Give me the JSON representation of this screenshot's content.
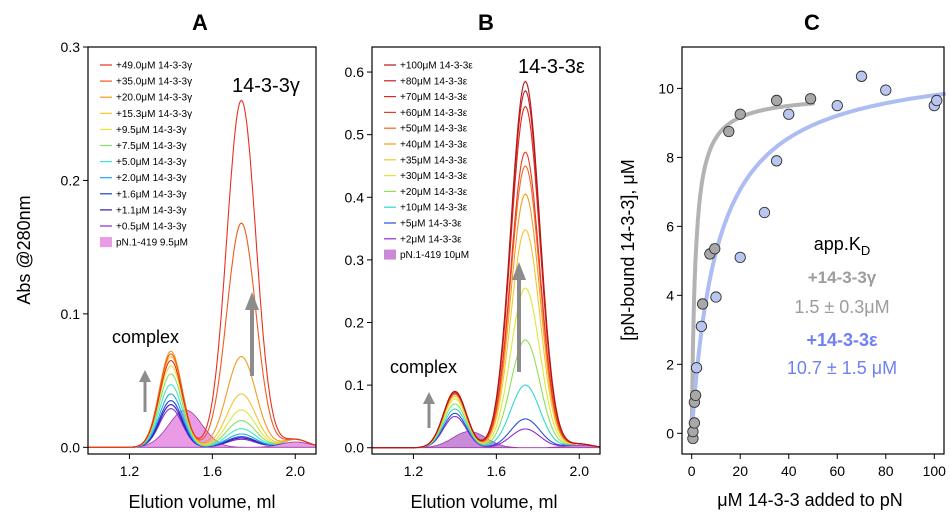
{
  "panels": {
    "a": {
      "letter": "A",
      "protein_label": "14-3-3γ",
      "complex_label": "complex"
    },
    "b": {
      "letter": "B",
      "protein_label": "14-3-3ε",
      "complex_label": "complex"
    },
    "c": {
      "letter": "C",
      "kd_title": "app.K",
      "kd_sub": "D",
      "gamma_name": "+14-3-3γ",
      "gamma_value": "1.5 ± 0.3μM",
      "eps_name": "+14-3-3ε",
      "eps_value": "10.7 ± 1.5 μM"
    }
  },
  "chart_data": [
    {
      "type": "line",
      "panel": "A",
      "xlabel": "Elution volume, ml",
      "ylabel": "Abs @280nm",
      "xlim": [
        1.0,
        2.1
      ],
      "ylim": [
        -0.005,
        0.3
      ],
      "x_ticks": [
        "1.2",
        "1.6",
        "2.0"
      ],
      "y_ticks": [
        "0.0",
        "0.1",
        "0.2",
        "0.3"
      ],
      "legend_position": "top-left",
      "fill_series": {
        "name": "pN.1-419 9.5μM",
        "color": "#e99be6",
        "peak2": 0.028
      },
      "series": [
        {
          "name": "+49.0μM 14-3-3γ",
          "color": "#e8301d",
          "peak1": 0.065,
          "peak2": 0.26
        },
        {
          "name": "+35.0μM 14-3-3γ",
          "color": "#f05a1e",
          "peak1": 0.07,
          "peak2": 0.168
        },
        {
          "name": "+20.0μM 14-3-3γ",
          "color": "#f39a1f",
          "peak1": 0.072,
          "peak2": 0.068
        },
        {
          "name": "+15.3μM 14-3-3γ",
          "color": "#f4c430",
          "peak1": 0.068,
          "peak2": 0.04
        },
        {
          "name": "+9.5μM 14-3-3γ",
          "color": "#e0e63a",
          "peak1": 0.061,
          "peak2": 0.028
        },
        {
          "name": "+7.5μM 14-3-3γ",
          "color": "#86e06a",
          "peak1": 0.055,
          "peak2": 0.02
        },
        {
          "name": "+5.0μM 14-3-3γ",
          "color": "#3fe8c8",
          "peak1": 0.047,
          "peak2": 0.014
        },
        {
          "name": "+2.0μM 14-3-3γ",
          "color": "#23a6f0",
          "peak1": 0.04,
          "peak2": 0.01
        },
        {
          "name": "+1.6μM 14-3-3γ",
          "color": "#1c40d8",
          "peak1": 0.035,
          "peak2": 0.008
        },
        {
          "name": "+1.1μM 14-3-3γ",
          "color": "#2a1fa8",
          "peak1": 0.032,
          "peak2": 0.007
        },
        {
          "name": "+0.5μM 14-3-3γ",
          "color": "#8a2ad2",
          "peak1": 0.029,
          "peak2": 0.006
        }
      ]
    },
    {
      "type": "line",
      "panel": "B",
      "xlabel": "Elution volume, ml",
      "xlim": [
        1.0,
        2.1
      ],
      "ylim": [
        -0.01,
        0.64
      ],
      "x_ticks": [
        "1.2",
        "1.6",
        "2.0"
      ],
      "y_ticks": [
        "0.0",
        "0.1",
        "0.2",
        "0.3",
        "0.4",
        "0.5",
        "0.6"
      ],
      "legend_position": "top-left",
      "fill_series": {
        "name": "pN.1-419 10μM",
        "color": "#c98ad8",
        "peak2": 0.026
      },
      "series": [
        {
          "name": "+100μM 14-3-3ε",
          "color": "#b01818",
          "peak1": 0.09,
          "peak2": 0.585
        },
        {
          "name": "+80μM 14-3-3ε",
          "color": "#c81e1e",
          "peak1": 0.09,
          "peak2": 0.57
        },
        {
          "name": "+70μM 14-3-3ε",
          "color": "#dc2a1f",
          "peak1": 0.088,
          "peak2": 0.545
        },
        {
          "name": "+60μM 14-3-3ε",
          "color": "#ea3a20",
          "peak1": 0.088,
          "peak2": 0.472
        },
        {
          "name": "+50μM 14-3-3ε",
          "color": "#f06822",
          "peak1": 0.086,
          "peak2": 0.45
        },
        {
          "name": "+40μM 14-3-3ε",
          "color": "#f49a24",
          "peak1": 0.085,
          "peak2": 0.405
        },
        {
          "name": "+35μM 14-3-3ε",
          "color": "#f4c630",
          "peak1": 0.082,
          "peak2": 0.348
        },
        {
          "name": "+30μM 14-3-3ε",
          "color": "#dce83a",
          "peak1": 0.078,
          "peak2": 0.255
        },
        {
          "name": "+20μM 14-3-3ε",
          "color": "#8ee05a",
          "peak1": 0.07,
          "peak2": 0.172
        },
        {
          "name": "+10μM 14-3-3ε",
          "color": "#2ed8d0",
          "peak1": 0.062,
          "peak2": 0.1
        },
        {
          "name": "+5μM 14-3-3ε",
          "color": "#2a4fd8",
          "peak1": 0.055,
          "peak2": 0.046
        },
        {
          "name": "+2μM 14-3-3ε",
          "color": "#8e2ad4",
          "peak1": 0.05,
          "peak2": 0.03
        }
      ]
    },
    {
      "type": "scatter",
      "panel": "C",
      "xlabel": "μM 14-3-3 added to pN",
      "ylabel": "[pN-bound 14-3-3], μM",
      "xlim": [
        -4,
        104
      ],
      "ylim": [
        -0.6,
        11.2
      ],
      "x_ticks": [
        "0",
        "20",
        "40",
        "60",
        "80",
        "100"
      ],
      "y_ticks": [
        "0",
        "2",
        "4",
        "6",
        "8",
        "10"
      ],
      "series": [
        {
          "name": "+14-3-3γ",
          "color": "#a8a8a8",
          "fit_color": "#b3b3b3",
          "kd": 1.5,
          "bmax": 9.85,
          "points": [
            [
              0.5,
              -0.15
            ],
            [
              0.5,
              0.05
            ],
            [
              1.1,
              0.3
            ],
            [
              1.1,
              0.9
            ],
            [
              1.6,
              1.1
            ],
            [
              4.5,
              3.75
            ],
            [
              7.5,
              5.2
            ],
            [
              9.5,
              5.35
            ],
            [
              15.3,
              8.75
            ],
            [
              20,
              9.25
            ],
            [
              35,
              9.65
            ],
            [
              49,
              9.7
            ]
          ]
        },
        {
          "name": "+14-3-3ε",
          "color": "#b8c6f0",
          "fit_color": "#aebcf4",
          "kd": 10.7,
          "bmax": 10.85,
          "points": [
            [
              2,
              1.9
            ],
            [
              4,
              3.1
            ],
            [
              10,
              3.95
            ],
            [
              20,
              5.1
            ],
            [
              30,
              6.4
            ],
            [
              35,
              7.9
            ],
            [
              40,
              9.25
            ],
            [
              60,
              9.5
            ],
            [
              70,
              10.35
            ],
            [
              80,
              9.95
            ],
            [
              100,
              9.5
            ],
            [
              101,
              9.65
            ]
          ]
        }
      ]
    }
  ]
}
